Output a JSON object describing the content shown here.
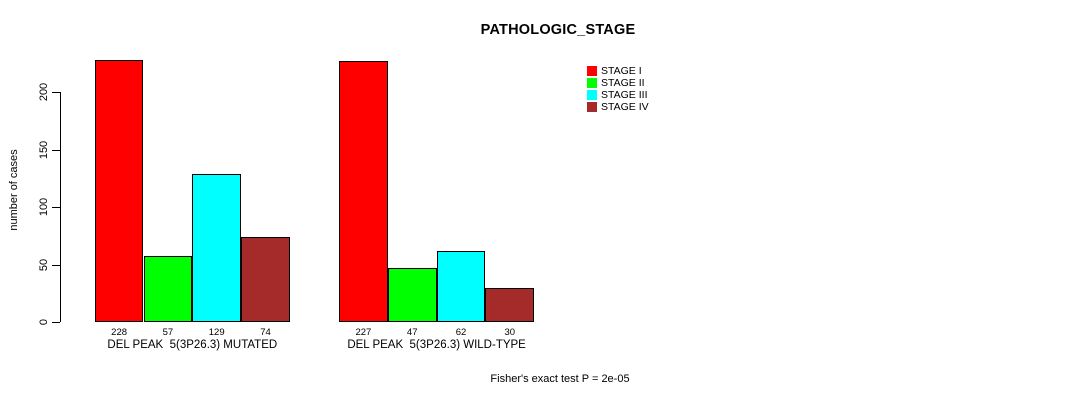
{
  "title": "PATHOLOGIC_STAGE",
  "footer": "Fisher's exact test P = 2e-05",
  "chart_data": {
    "type": "bar",
    "title": "PATHOLOGIC_STAGE",
    "xlabel": "",
    "ylabel": "number of cases",
    "ylim": [
      0,
      232
    ],
    "yticks": [
      0,
      50,
      100,
      150,
      200
    ],
    "grid": false,
    "legend_position": "right-top",
    "series": [
      {
        "name": "STAGE I",
        "color": "#FF0000",
        "values": [
          228,
          227
        ]
      },
      {
        "name": "STAGE II",
        "color": "#00FF00",
        "values": [
          57,
          47
        ]
      },
      {
        "name": "STAGE III",
        "color": "#00FFFF",
        "values": [
          129,
          62
        ]
      },
      {
        "name": "STAGE IV",
        "color": "#A52A2A",
        "values": [
          74,
          30
        ]
      }
    ],
    "categories": [
      "DEL PEAK  5(3P26.3) MUTATED",
      "DEL PEAK  5(3P26.3) WILD-TYPE"
    ],
    "bar_value_labels": [
      [
        228,
        57,
        129,
        74
      ],
      [
        227,
        47,
        62,
        30
      ]
    ],
    "annotation": "Fisher's exact test P = 2e-05"
  },
  "legend": {
    "entries": [
      {
        "label": "STAGE I",
        "color": "#FF0000"
      },
      {
        "label": "STAGE II",
        "color": "#00FF00"
      },
      {
        "label": "STAGE III",
        "color": "#00FFFF"
      },
      {
        "label": "STAGE IV",
        "color": "#A52A2A"
      }
    ]
  }
}
